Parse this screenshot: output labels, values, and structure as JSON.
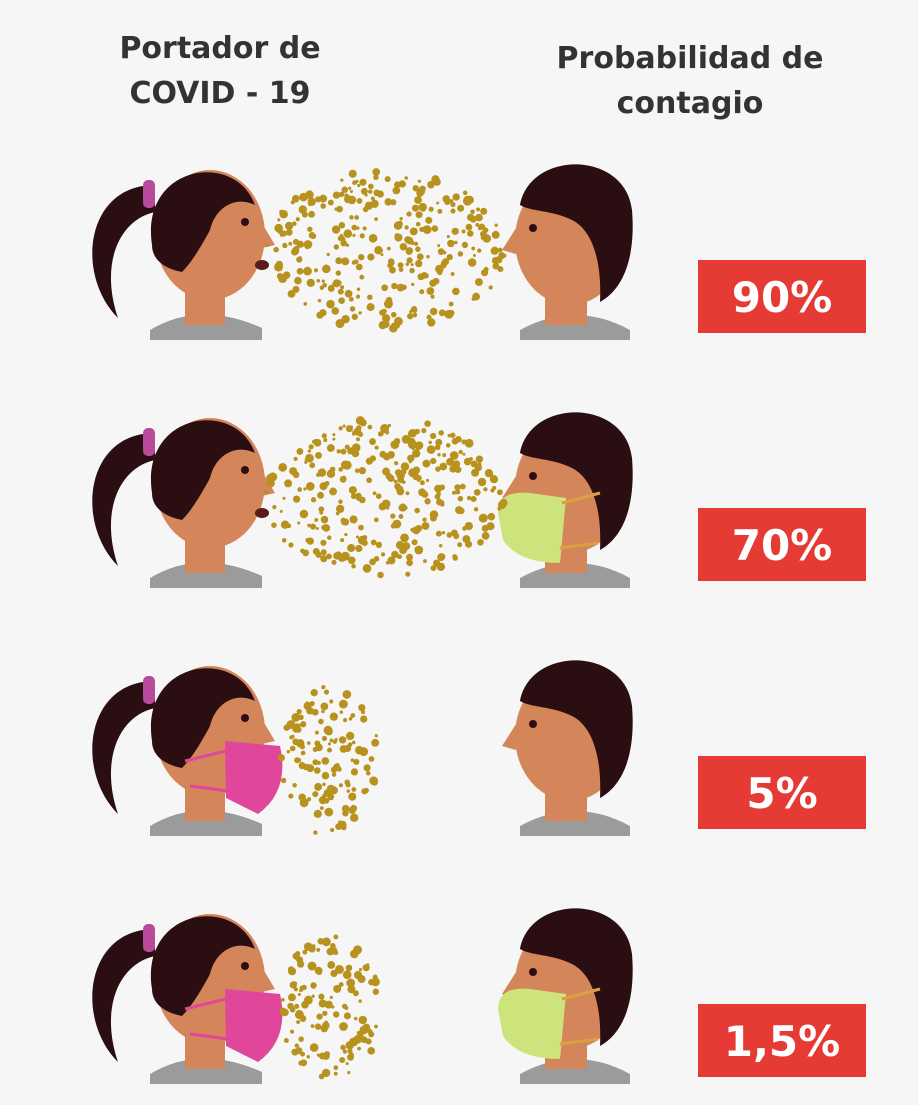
{
  "header": {
    "carrier": [
      "Portador de",
      "COVID - 19"
    ],
    "probability": [
      "Probabilidad de",
      "contagio"
    ]
  },
  "rows": [
    {
      "carrier_mask": false,
      "receiver_mask": false,
      "label": "90%"
    },
    {
      "carrier_mask": false,
      "receiver_mask": true,
      "label": "70%"
    },
    {
      "carrier_mask": true,
      "receiver_mask": false,
      "label": "5%"
    },
    {
      "carrier_mask": true,
      "receiver_mask": true,
      "label": "1,5%"
    }
  ]
}
